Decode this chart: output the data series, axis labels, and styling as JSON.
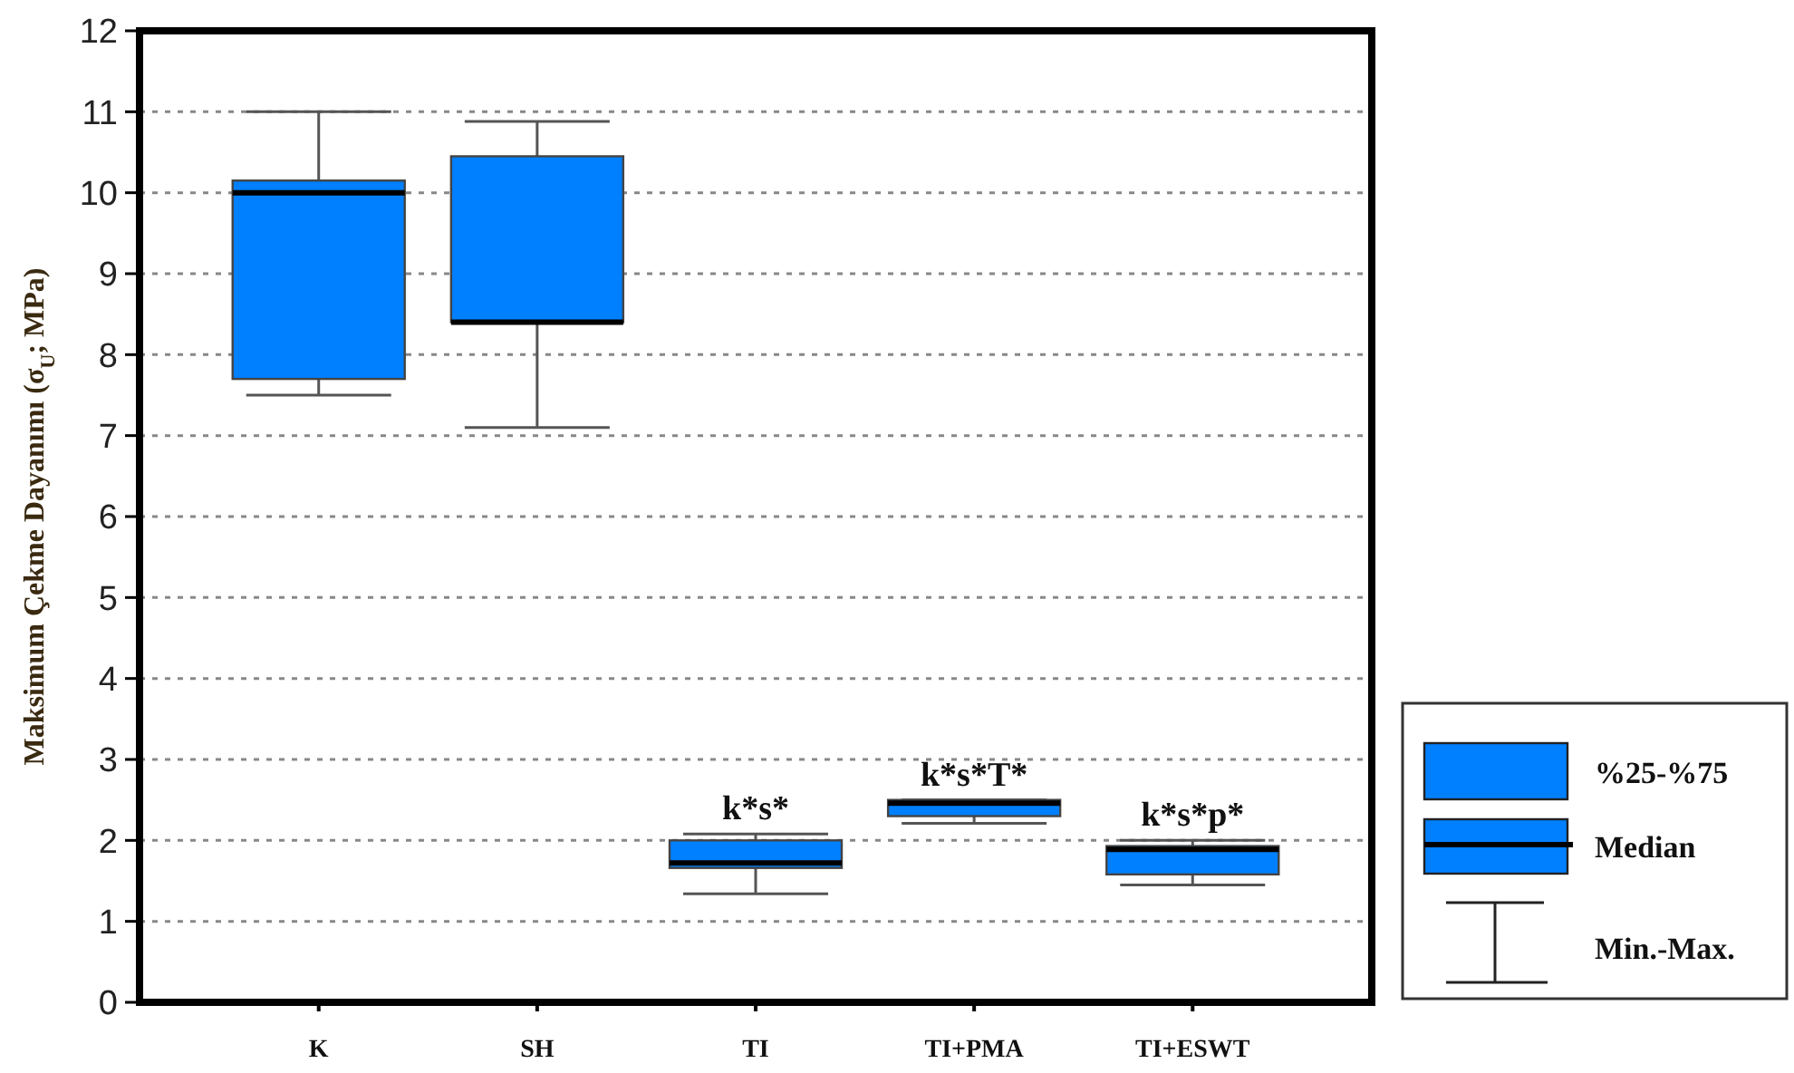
{
  "chart_data": {
    "type": "box",
    "ylabel": "Maksimum Çekme Dayanımı (σ$_{U}$; MPa)",
    "categories": [
      "K",
      "SH",
      "TI",
      "TI+PMA",
      "TI+ESWT"
    ],
    "boxes": [
      {
        "low": 7.5,
        "q1": 7.7,
        "median": 10.0,
        "q3": 10.15,
        "high": 11.0
      },
      {
        "low": 7.1,
        "q1": 8.4,
        "median": 8.4,
        "q3": 10.45,
        "high": 10.88
      },
      {
        "low": 1.34,
        "q1": 1.66,
        "median": 1.72,
        "q3": 2.0,
        "high": 2.08
      },
      {
        "low": 2.21,
        "q1": 2.3,
        "median": 2.46,
        "q3": 2.5,
        "high": 2.5
      },
      {
        "low": 1.45,
        "q1": 1.58,
        "median": 1.89,
        "q3": 1.93,
        "high": 2.0
      }
    ],
    "color": "#0080ff",
    "ylim": [
      0,
      12
    ],
    "yticks": [
      0,
      1,
      2,
      3,
      4,
      5,
      6,
      7,
      8,
      9,
      10,
      11,
      12
    ],
    "grid": "y",
    "annotations": [
      {
        "text": "k*s*",
        "x": "TI",
        "y": 2.08
      },
      {
        "text": "k*s*T*",
        "x": "TI+PMA",
        "y": 2.5
      },
      {
        "text": "k*s*p*",
        "x": "TI+ESWT",
        "y": 2.0
      },
      "%25-%75",
      "Median",
      "Min.-Max."
    ]
  }
}
